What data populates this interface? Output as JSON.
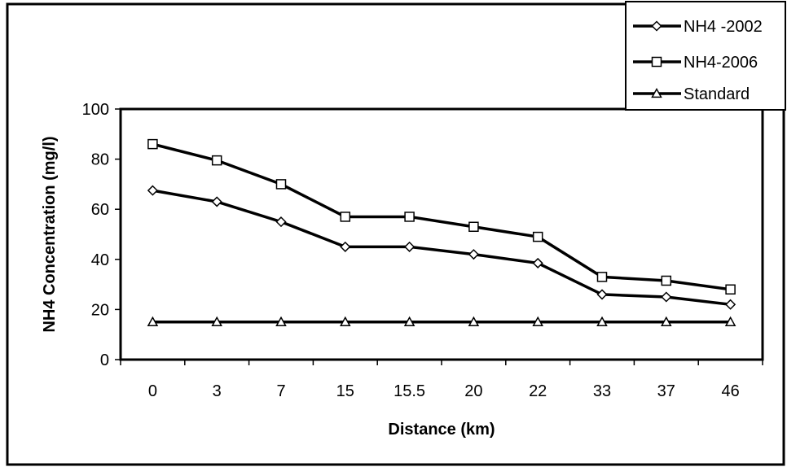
{
  "chart_data": {
    "type": "line",
    "title": "",
    "xlabel": "Distance (km)",
    "ylabel": "NH4  Concentration (mg/l)",
    "categories": [
      "0",
      "3",
      "7",
      "15",
      "15.5",
      "20",
      "22",
      "33",
      "37",
      "46"
    ],
    "ylim": [
      0,
      100
    ],
    "yticks": [
      0,
      20,
      40,
      60,
      80,
      100
    ],
    "grid": false,
    "legend_position": "top-right",
    "series": [
      {
        "name": "NH4 -2002",
        "marker": "diamond",
        "color": "#000000",
        "values": [
          67.5,
          63,
          55,
          45,
          45,
          42,
          38.5,
          26,
          25,
          22
        ]
      },
      {
        "name": "NH4-2006",
        "marker": "square",
        "color": "#000000",
        "values": [
          86,
          79.5,
          70,
          57,
          57,
          53,
          49,
          33,
          31.5,
          28
        ]
      },
      {
        "name": "Standard",
        "marker": "triangle",
        "color": "#000000",
        "values": [
          15,
          15,
          15,
          15,
          15,
          15,
          15,
          15,
          15,
          15
        ]
      }
    ]
  }
}
